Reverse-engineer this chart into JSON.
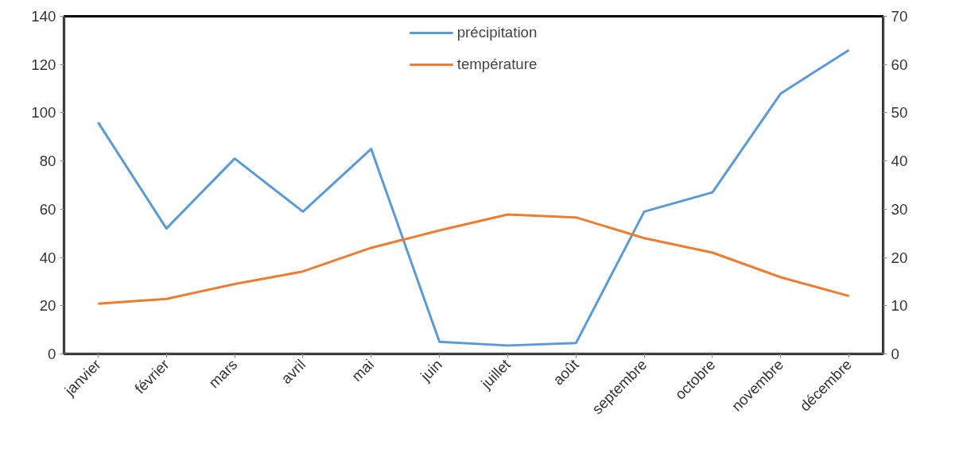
{
  "chart_data": {
    "type": "line",
    "categories": [
      "janvier",
      "février",
      "mars",
      "avril",
      "mai",
      "juin",
      "juillet",
      "août",
      "septembre",
      "octobre",
      "novembre",
      "décembre"
    ],
    "series": [
      {
        "name": "précipitation",
        "color": "#5b9bd5",
        "values": [
          96,
          52,
          81,
          59,
          85,
          5,
          3.5,
          4.5,
          59,
          67,
          108,
          126
        ]
      },
      {
        "name": "température",
        "color": "#ed7d31",
        "axis": "y2",
        "values": [
          10.4,
          11.4,
          14.5,
          17.1,
          22,
          25.6,
          28.9,
          28.3,
          24,
          21,
          15.9,
          12
        ]
      }
    ],
    "ylim": [
      0,
      140
    ],
    "yticks": [
      0,
      20,
      40,
      60,
      80,
      100,
      120,
      140
    ],
    "y2lim": [
      0,
      70
    ],
    "y2ticks": [
      0,
      10,
      20,
      30,
      40,
      50,
      60,
      70
    ],
    "grid": false,
    "legend": "top",
    "marker": "none",
    "line_style": "solid"
  }
}
